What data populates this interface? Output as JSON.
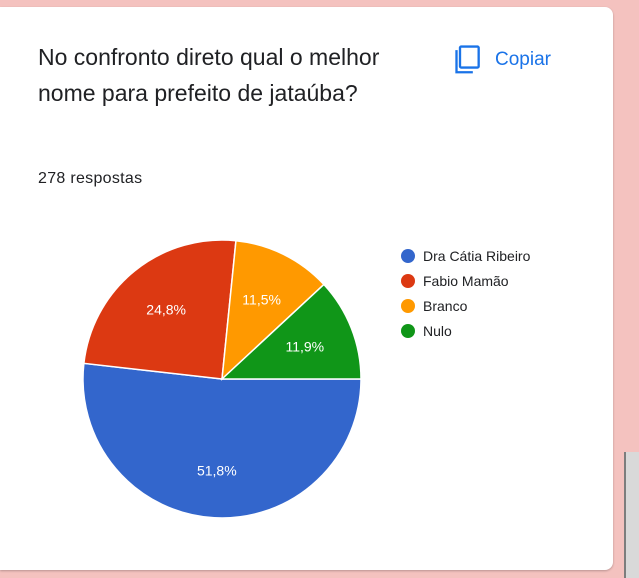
{
  "card": {
    "question": "No confronto direto qual o melhor nome para prefeito de jataúba?",
    "responses": "278 respostas",
    "copy_label": "Copiar",
    "copy_icon": "copy-icon",
    "accent_color": "#1a73e8"
  },
  "chart_data": {
    "type": "pie",
    "categories": [
      "Dra Cátia Ribeiro",
      "Fabio Mamão",
      "Branco",
      "Nulo"
    ],
    "values": [
      51.8,
      24.8,
      11.5,
      11.9
    ],
    "labels": [
      "51,8%",
      "24,8%",
      "11,5%",
      "11,9%"
    ],
    "colors": [
      "#3366cc",
      "#dc3912",
      "#ff9900",
      "#109618"
    ],
    "legend_position": "right"
  }
}
